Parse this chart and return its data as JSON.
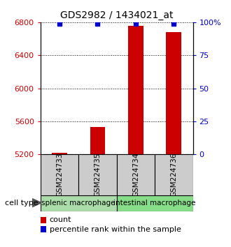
{
  "title": "GDS2982 / 1434021_at",
  "samples": [
    "GSM224733",
    "GSM224735",
    "GSM224734",
    "GSM224736"
  ],
  "counts": [
    5218,
    5530,
    6760,
    6680
  ],
  "percentiles": [
    99,
    99,
    99,
    99
  ],
  "ylim_left": [
    5200,
    6800
  ],
  "ylim_right": [
    0,
    100
  ],
  "yticks_left": [
    5200,
    5600,
    6000,
    6400,
    6800
  ],
  "yticks_right": [
    0,
    25,
    50,
    75,
    100
  ],
  "ytick_labels_left": [
    "5200",
    "5600",
    "6000",
    "6400",
    "6800"
  ],
  "ytick_labels_right": [
    "0",
    "25",
    "50",
    "75",
    "100%"
  ],
  "bar_color": "#cc0000",
  "marker_color": "#0000cc",
  "baseline": 5200,
  "cell_types": [
    {
      "label": "splenic macrophage",
      "samples": [
        0,
        1
      ],
      "color": "#aaddaa"
    },
    {
      "label": "intestinal macrophage",
      "samples": [
        2,
        3
      ],
      "color": "#88dd88"
    }
  ],
  "sample_box_color": "#cccccc",
  "legend_count_label": "count",
  "legend_pct_label": "percentile rank within the sample",
  "cell_type_label": "cell type",
  "bg_color": "#ffffff",
  "left_axis_color": "#cc0000",
  "right_axis_color": "#0000cc",
  "marker_size": 5,
  "bar_width": 0.4
}
